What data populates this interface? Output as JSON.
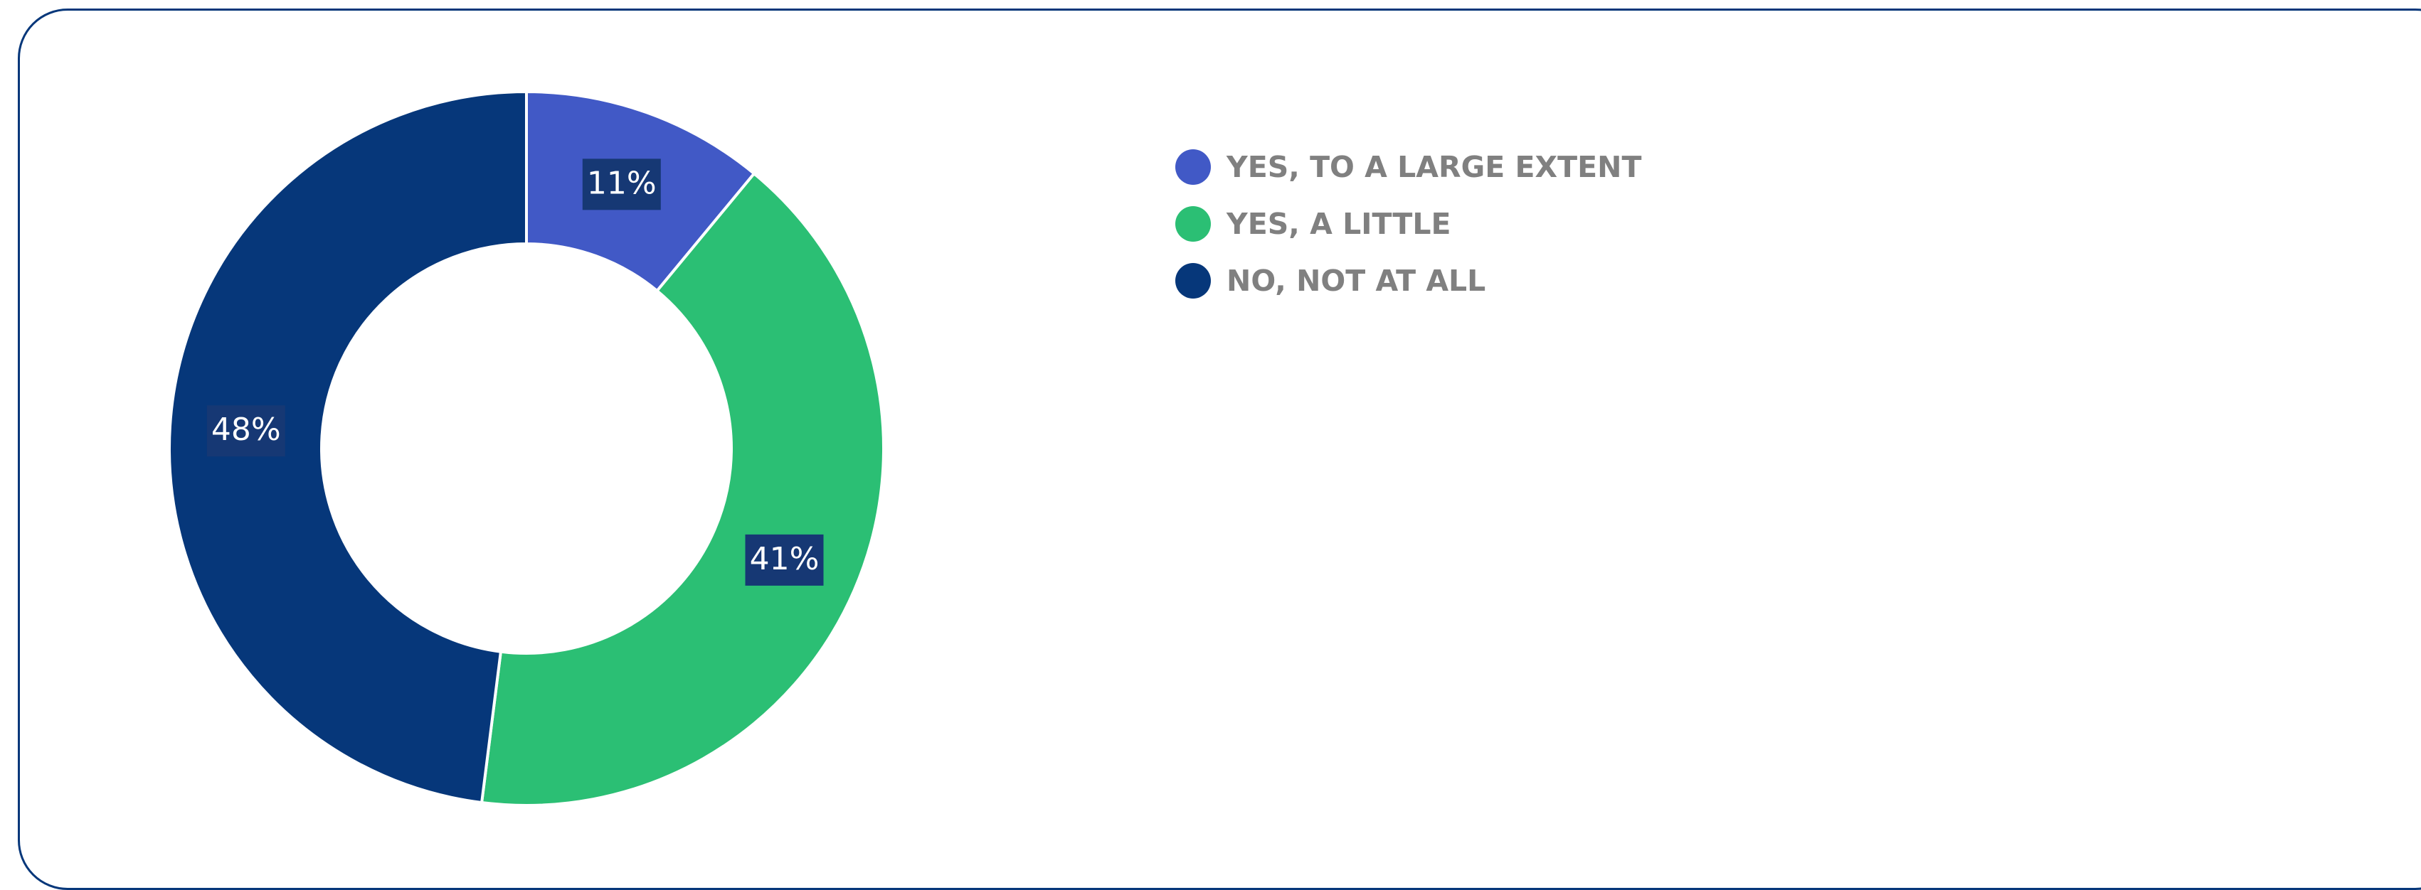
{
  "chart_data": {
    "type": "pie",
    "variant": "donut",
    "title": "",
    "categories": [
      "YES, TO A LARGE EXTENT",
      "YES, A LITTLE",
      "NO, NOT AT ALL"
    ],
    "values": [
      11,
      41,
      48
    ],
    "value_labels": [
      "11%",
      "41%",
      "48%"
    ],
    "colors": [
      "#4159c6",
      "#2bbf74",
      "#06377a"
    ],
    "label_background": "#163874",
    "legend_position": "top-right"
  }
}
